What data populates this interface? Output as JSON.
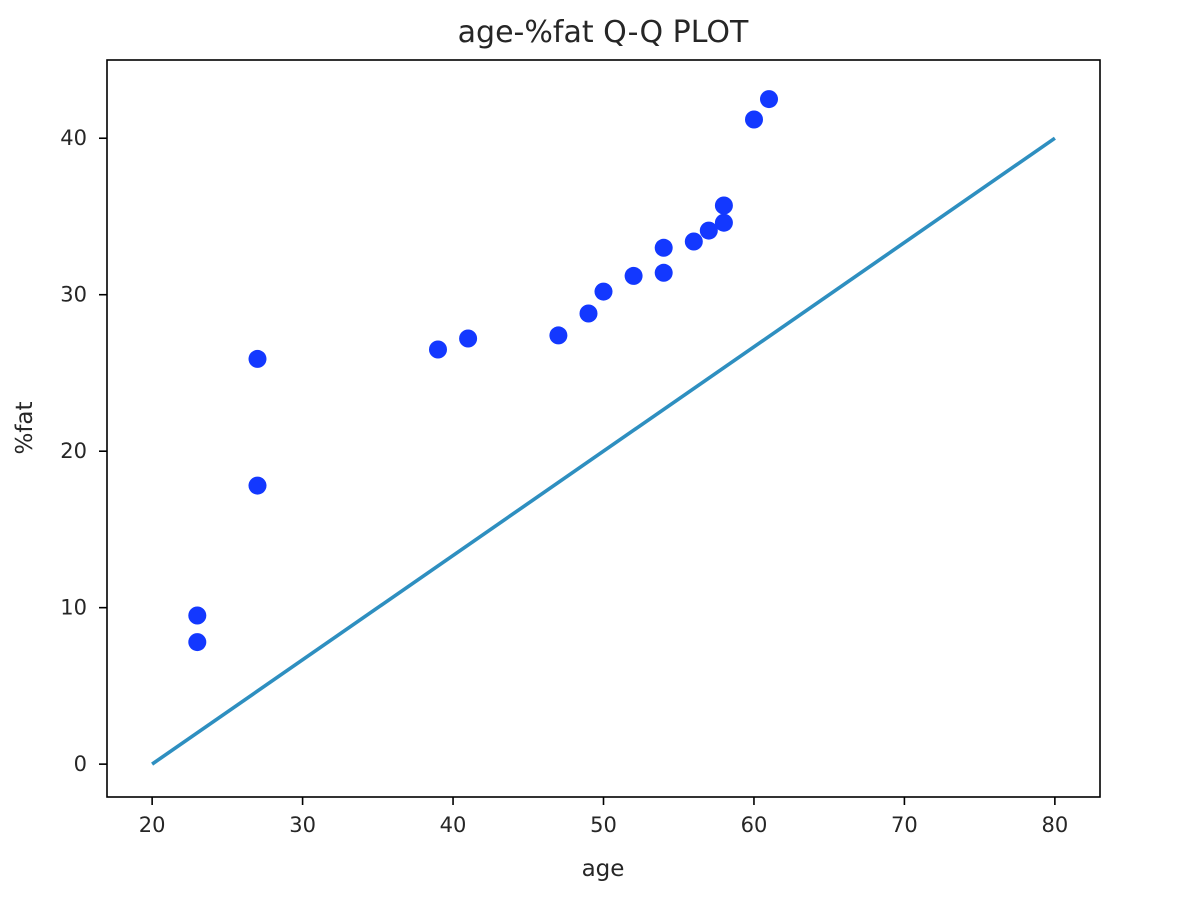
{
  "chart_data": {
    "type": "scatter",
    "title": "age-%fat Q-Q PLOT",
    "xlabel": "age",
    "ylabel": "%fat",
    "xlim": [
      17,
      83
    ],
    "ylim": [
      -2.1,
      45
    ],
    "xticks": [
      20,
      30,
      40,
      50,
      60,
      70,
      80
    ],
    "yticks": [
      0,
      10,
      20,
      30,
      40
    ],
    "grid": false,
    "series": [
      {
        "type": "scatter",
        "color": "#1338ff",
        "points": [
          {
            "x": 23,
            "y": 9.5
          },
          {
            "x": 23,
            "y": 7.8
          },
          {
            "x": 27,
            "y": 17.8
          },
          {
            "x": 27,
            "y": 25.9
          },
          {
            "x": 39,
            "y": 26.5
          },
          {
            "x": 41,
            "y": 27.2
          },
          {
            "x": 47,
            "y": 27.4
          },
          {
            "x": 49,
            "y": 28.8
          },
          {
            "x": 50,
            "y": 30.2
          },
          {
            "x": 52,
            "y": 31.2
          },
          {
            "x": 54,
            "y": 31.4
          },
          {
            "x": 54,
            "y": 33.0
          },
          {
            "x": 56,
            "y": 33.4
          },
          {
            "x": 57,
            "y": 34.1
          },
          {
            "x": 58,
            "y": 34.6
          },
          {
            "x": 58,
            "y": 35.7
          },
          {
            "x": 60,
            "y": 41.2
          },
          {
            "x": 61,
            "y": 42.5
          }
        ]
      },
      {
        "type": "line",
        "color": "#2e8fc0",
        "points": [
          {
            "x": 20,
            "y": 0
          },
          {
            "x": 80,
            "y": 40
          }
        ]
      }
    ]
  }
}
